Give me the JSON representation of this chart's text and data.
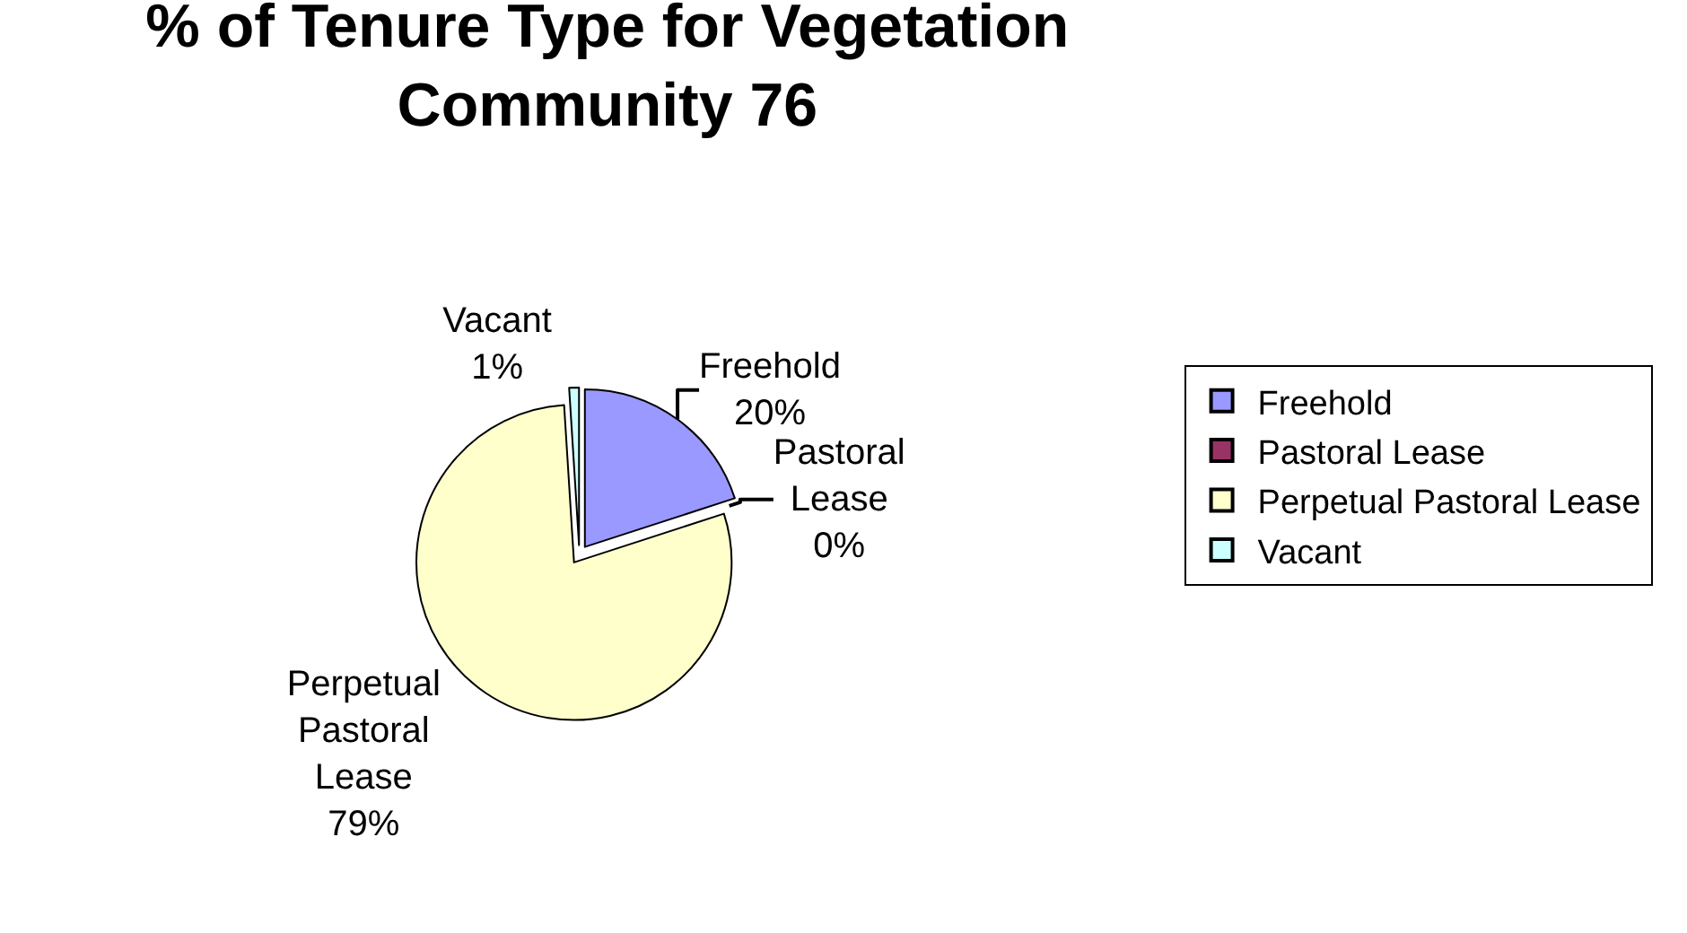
{
  "chart_data": {
    "type": "pie",
    "title": "% of Tenure Type for Vegetation Community 76",
    "categories": [
      "Freehold",
      "Pastoral Lease",
      "Perpetual Pastoral Lease",
      "Vacant"
    ],
    "values": [
      20,
      0,
      79,
      1
    ],
    "value_labels": [
      "20%",
      "0%",
      "79%",
      "1%"
    ],
    "colors": [
      "#9999ff",
      "#993366",
      "#ffffcc",
      "#ccffff"
    ],
    "legend": "right"
  }
}
